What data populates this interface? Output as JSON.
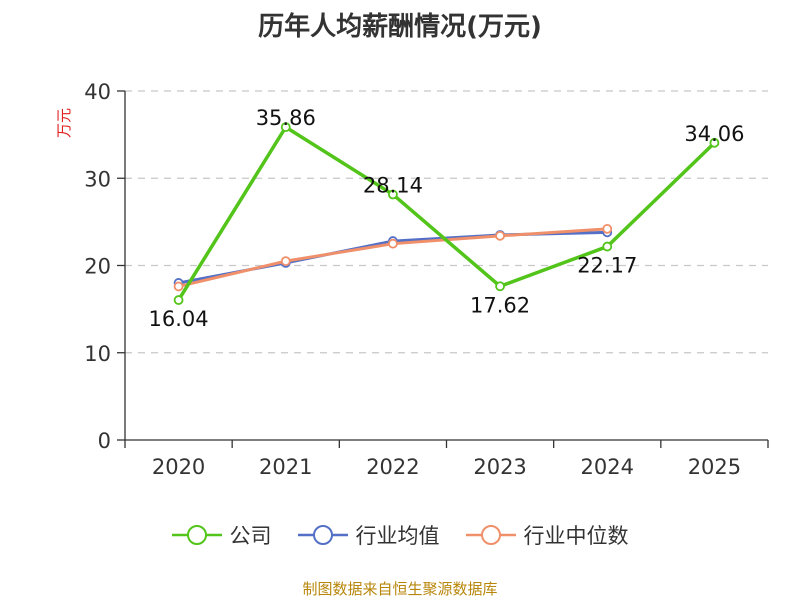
{
  "chart_data": {
    "type": "line",
    "title": "历年人均薪酬情况(万元)",
    "ylabel": "万元",
    "xlabel": "",
    "categories": [
      "2020",
      "2021",
      "2022",
      "2023",
      "2024",
      "2025"
    ],
    "ylim": [
      0,
      40
    ],
    "yticks": [
      0,
      10,
      20,
      30,
      40
    ],
    "grid": true,
    "legend_position": "bottom",
    "series": [
      {
        "name": "公司",
        "color": "#52c41a",
        "values": [
          16.04,
          35.86,
          28.14,
          17.62,
          22.17,
          34.06
        ],
        "labels": [
          "16.04",
          "35.86",
          "28.14",
          "17.62",
          "22.17",
          "34.06"
        ]
      },
      {
        "name": "行业均值",
        "color": "#5470c6",
        "values": [
          18.0,
          20.3,
          22.8,
          23.5,
          23.8,
          null
        ],
        "labels": []
      },
      {
        "name": "行业中位数",
        "color": "#f0906b",
        "values": [
          17.6,
          20.5,
          22.5,
          23.4,
          24.2,
          null
        ],
        "labels": []
      }
    ]
  },
  "source": "制图数据来自恒生聚源数据库"
}
